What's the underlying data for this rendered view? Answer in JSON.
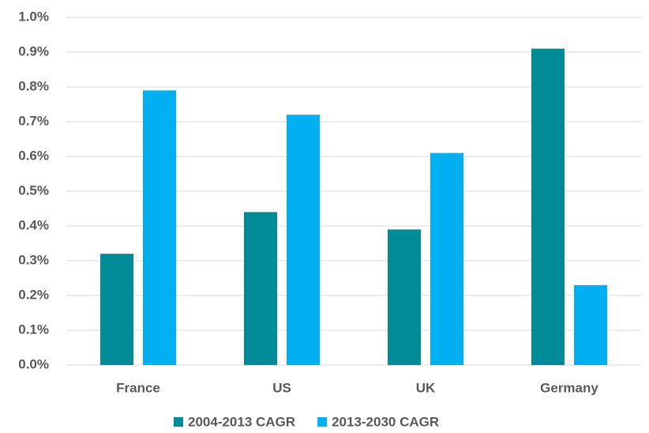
{
  "chart_data": {
    "type": "bar",
    "categories": [
      "France",
      "US",
      "UK",
      "Germany"
    ],
    "series": [
      {
        "name": "2004-2013 CAGR",
        "color": "#008b96",
        "values": [
          0.32,
          0.44,
          0.39,
          0.91
        ]
      },
      {
        "name": "2013-2030 CAGR",
        "color": "#00b0f0",
        "values": [
          0.79,
          0.72,
          0.61,
          0.23
        ]
      }
    ],
    "ylim": [
      0,
      1
    ],
    "yticks": [
      {
        "value": 0,
        "label": "0.0%"
      },
      {
        "value": 0.1,
        "label": "0.1%"
      },
      {
        "value": 0.2,
        "label": "0.2%"
      },
      {
        "value": 0.3,
        "label": "0.3%"
      },
      {
        "value": 0.4,
        "label": "0.4%"
      },
      {
        "value": 0.5,
        "label": "0.5%"
      },
      {
        "value": 0.6,
        "label": "0.6%"
      },
      {
        "value": 0.7,
        "label": "0.7%"
      },
      {
        "value": 0.8,
        "label": "0.8%"
      },
      {
        "value": 0.9,
        "label": "0.9%"
      },
      {
        "value": 1,
        "label": "1.0%"
      }
    ],
    "grid": true,
    "legend": "bottom"
  }
}
